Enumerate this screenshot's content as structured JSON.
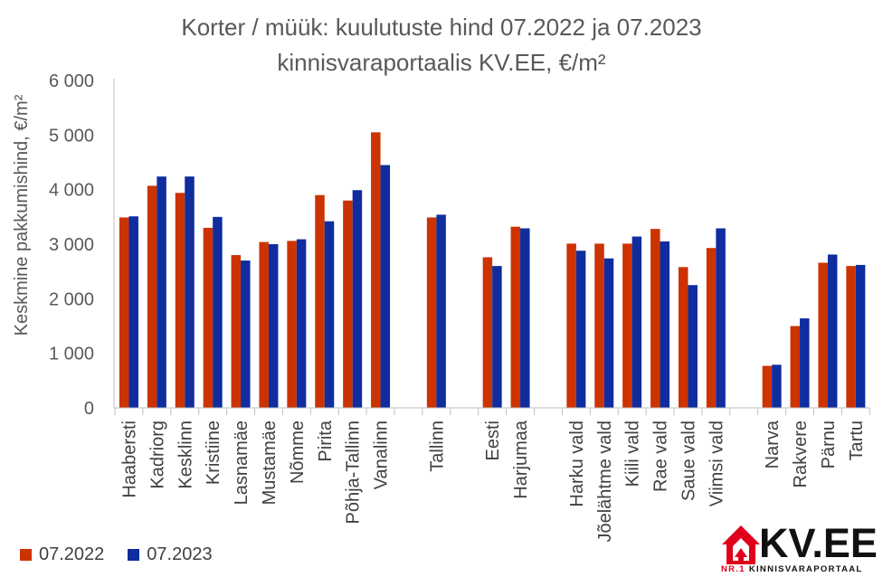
{
  "chart_data": {
    "type": "bar",
    "title_line1": "Korter / müük: kuulutuste hind 07.2022 ja 07.2023",
    "title_line2": "kinnisvaraportaalis KV.EE, €/m²",
    "ylabel": "Keskmine pakkumishind, €/m²",
    "xlabel": "",
    "ylim": [
      0,
      6000
    ],
    "yticks": [
      0,
      1000,
      2000,
      3000,
      4000,
      5000,
      6000
    ],
    "ytick_labels": [
      "0",
      "1 000",
      "2 000",
      "3 000",
      "4 000",
      "5 000",
      "6 000"
    ],
    "grid": false,
    "legend_position": "bottom-left",
    "groups": [
      [
        "Haabersti",
        "Kadriorg",
        "Kesklinn",
        "Kristiine",
        "Lasnamäe",
        "Mustamäe",
        "Nõmme",
        "Pirita",
        "Põhja-Tallinn",
        "Vanalinn"
      ],
      [
        "Tallinn"
      ],
      [
        "Eesti",
        "Harjumaa"
      ],
      [
        "Harku vald",
        "Jõelähtme vald",
        "Kiili vald",
        "Rae vald",
        "Saue vald",
        "Viimsi vald"
      ],
      [
        "Narva",
        "Rakvere",
        "Pärnu",
        "Tartu"
      ]
    ],
    "categories": [
      "Haabersti",
      "Kadriorg",
      "Kesklinn",
      "Kristiine",
      "Lasnamäe",
      "Mustamäe",
      "Nõmme",
      "Pirita",
      "Põhja-Tallinn",
      "Vanalinn",
      "Tallinn",
      "Eesti",
      "Harjumaa",
      "Harku vald",
      "Jõelähtme vald",
      "Kiili vald",
      "Rae vald",
      "Saue vald",
      "Viimsi vald",
      "Narva",
      "Rakvere",
      "Pärnu",
      "Tartu"
    ],
    "series": [
      {
        "name": "07.2022",
        "color": "#cc3300",
        "values": [
          3490,
          4070,
          3940,
          3300,
          2800,
          3040,
          3060,
          3900,
          3800,
          5050,
          3490,
          2760,
          3320,
          3010,
          3010,
          3010,
          3280,
          2580,
          2930,
          770,
          1500,
          2660,
          2600
        ]
      },
      {
        "name": "07.2023",
        "color": "#0f2d9e",
        "values": [
          3510,
          4240,
          4240,
          3500,
          2700,
          3000,
          3090,
          3420,
          3990,
          4450,
          3540,
          2600,
          3290,
          2880,
          2740,
          3140,
          3050,
          2250,
          3290,
          790,
          1640,
          2810,
          2620
        ]
      }
    ]
  },
  "logo": {
    "text": "KV.EE",
    "tag_nr": "NR.1",
    "tag_rest": "KINNISVARAPORTAAL",
    "accent_color": "#e0001b"
  }
}
